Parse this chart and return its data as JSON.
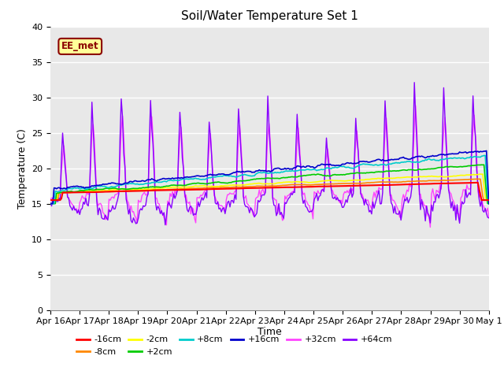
{
  "title": "Soil/Water Temperature Set 1",
  "ylabel": "Temperature (C)",
  "xlabel": "Time",
  "annotation": "EE_met",
  "ylim": [
    0,
    40
  ],
  "yticks": [
    0,
    5,
    10,
    15,
    20,
    25,
    30,
    35,
    40
  ],
  "background_color": "#e8e8e8",
  "plot_bg_color": "#e8e8e8",
  "series": {
    "-16cm": {
      "color": "#ff0000",
      "lw": 1.5,
      "zorder": 5
    },
    "-8cm": {
      "color": "#ff8800",
      "lw": 1.2,
      "zorder": 4
    },
    "-2cm": {
      "color": "#ffff00",
      "lw": 1.2,
      "zorder": 4
    },
    "+2cm": {
      "color": "#00cc00",
      "lw": 1.2,
      "zorder": 4
    },
    "+8cm": {
      "color": "#00cccc",
      "lw": 1.2,
      "zorder": 4
    },
    "+16cm": {
      "color": "#0000cc",
      "lw": 1.2,
      "zorder": 4
    },
    "+32cm": {
      "color": "#ff44ff",
      "lw": 1.0,
      "zorder": 3
    },
    "+64cm": {
      "color": "#8800ff",
      "lw": 1.0,
      "zorder": 3
    }
  },
  "date_labels": [
    "Apr 16",
    "Apr 17",
    "Apr 18",
    "Apr 19",
    "Apr 20",
    "Apr 21",
    "Apr 22",
    "Apr 23",
    "Apr 24",
    "Apr 25",
    "Apr 26",
    "Apr 27",
    "Apr 28",
    "Apr 29",
    "Apr 30",
    "May 1"
  ],
  "title_fontsize": 11,
  "tick_fontsize": 8,
  "legend_fontsize": 8,
  "fig_width": 6.4,
  "fig_height": 4.8,
  "dpi": 100
}
